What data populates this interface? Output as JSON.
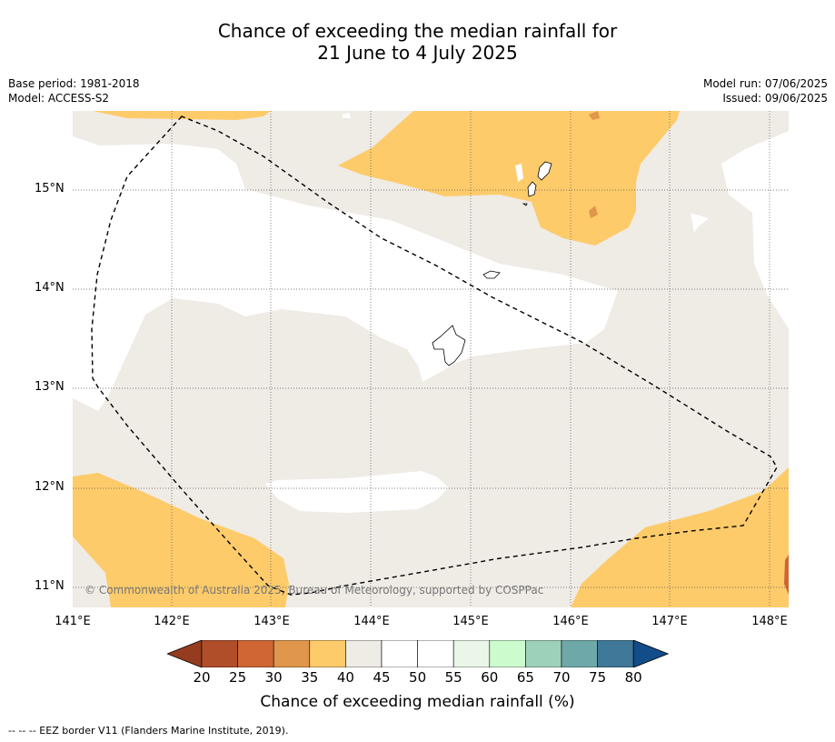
{
  "title_line1": "Chance of exceeding the median rainfall for",
  "title_line2": "21 June to 4 July 2025",
  "base_period": "Base period: 1981-2018",
  "model": "Model: ACCESS-S2",
  "model_run": "Model run: 07/06/2025",
  "issued": "Issued: 09/06/2025",
  "copyright": "© Commonwealth of Australia 2025, Bureau of Meteorology, supported by COSPPac",
  "lat_labels": [
    "15°N",
    "14°N",
    "13°N",
    "12°N",
    "11°N"
  ],
  "lon_labels": [
    "141°E",
    "142°E",
    "143°E",
    "144°E",
    "145°E",
    "146°E",
    "147°E",
    "148°E"
  ],
  "colorbar": {
    "ticks": [
      "20",
      "25",
      "30",
      "35",
      "40",
      "45",
      "50",
      "55",
      "60",
      "65",
      "70",
      "75",
      "80"
    ],
    "colors": [
      "#b04e2a",
      "#cf6633",
      "#e0964b",
      "#fdcb6a",
      "#efebe5",
      "#ffffff",
      "#ffffff",
      "#eaf6e8",
      "#ccfccd",
      "#9ed1b9",
      "#6fa8a8",
      "#3f7898"
    ],
    "under_color": "#953c1f",
    "over_color": "#124d8a",
    "title": "Chance of exceeding median rainfall (%)"
  },
  "footnote": "--  --  -- EEZ border V11 (Flanders Marine Institute, 2019).",
  "legend_colors": {
    "band_35_40": "#fdcb6a",
    "band_40_45": "#efebe5",
    "band_45_55": "#ffffff",
    "band_30_35": "#e0964b",
    "band_25_30": "#cf6633"
  }
}
